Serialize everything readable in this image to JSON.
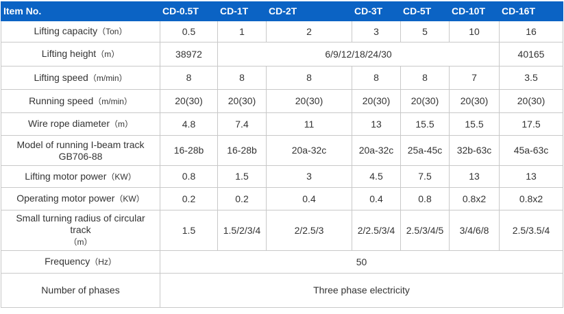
{
  "header": {
    "item_no": "Item No.",
    "models": [
      "CD-0.5T",
      "CD-1T",
      "CD-2T",
      "CD-3T",
      "CD-5T",
      "CD-10T",
      "CD-16T"
    ]
  },
  "rows": {
    "capacity": {
      "label": "Lifting capacity",
      "unit": "（Ton）",
      "values": [
        "0.5",
        "1",
        "2",
        "3",
        "5",
        "10",
        "16"
      ]
    },
    "height": {
      "label": "Lifting height",
      "unit": "（m）",
      "first": "38972",
      "shared": "6/9/12/18/24/30",
      "last": "40165"
    },
    "speed": {
      "label": "Lifting speed",
      "unit": "（m/min）",
      "values": [
        "8",
        "8",
        "8",
        "8",
        "8",
        "7",
        "3.5"
      ]
    },
    "running": {
      "label": "Running speed",
      "unit": "（m/min）",
      "values": [
        "20(30)",
        "20(30)",
        "20(30)",
        "20(30)",
        "20(30)",
        "20(30)",
        "20(30)"
      ]
    },
    "wire": {
      "label": "Wire rope diameter",
      "unit": "（m）",
      "values": [
        "4.8",
        "7.4",
        "11",
        "13",
        "15.5",
        "15.5",
        "17.5"
      ]
    },
    "track": {
      "label_line1": "Model of running I-beam track",
      "label_line2": "GB706-88",
      "values": [
        "16-28b",
        "16-28b",
        "20a-32c",
        "20a-32c",
        "25a-45c",
        "32b-63c",
        "45a-63c"
      ]
    },
    "lift_motor": {
      "label": "Lifting motor power",
      "unit": "（KW）",
      "values": [
        "0.8",
        "1.5",
        "3",
        "4.5",
        "7.5",
        "13",
        "13"
      ]
    },
    "op_motor": {
      "label": "Operating motor power",
      "unit": "（KW）",
      "values": [
        "0.2",
        "0.2",
        "0.4",
        "0.4",
        "0.8",
        "0.8x2",
        "0.8x2"
      ]
    },
    "radius": {
      "label_line1": "Small turning radius of circular",
      "label_line2": "track",
      "label_line3": "（m）",
      "values": [
        "1.5",
        "1.5/2/3/4",
        "2/2.5/3",
        "2/2.5/3/4",
        "2.5/3/4/5",
        "3/4/6/8",
        "2.5/3.5/4"
      ]
    },
    "frequency": {
      "label": "Frequency",
      "unit": "（Hz）",
      "value": "50"
    },
    "phases": {
      "label": "Number of phases",
      "value": "Three phase electricity"
    }
  },
  "colors": {
    "header_bg": "#0b63c4",
    "header_text": "#ffffff",
    "border": "#c8c8c8",
    "text": "#333333"
  }
}
